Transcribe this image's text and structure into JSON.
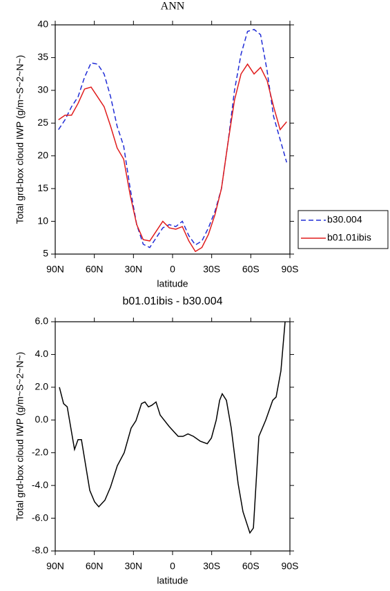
{
  "chart_data": [
    {
      "type": "line",
      "title": "ANN",
      "x_label": "latitude",
      "y_label": "Total grd-box cloud IWP (g/m~S~2~N~)",
      "x": [
        87.5,
        82.5,
        77.5,
        72.5,
        67.5,
        62.5,
        57.5,
        52.5,
        47.5,
        42.5,
        37.5,
        32.5,
        27.5,
        22.5,
        17.5,
        12.5,
        7.5,
        2.5,
        -2.5,
        -7.5,
        -12.5,
        -17.5,
        -22.5,
        -27.5,
        -32.5,
        -37.5,
        -42.5,
        -47.5,
        -52.5,
        -57.5,
        -62.5,
        -67.5,
        -72.5,
        -77.5,
        -82.5,
        -87.5
      ],
      "series": [
        {
          "name": "b30.004",
          "color": "#1f2bd6",
          "line_style": "dashed",
          "values": [
            24,
            25.5,
            27.5,
            29,
            32,
            34.2,
            34,
            32.5,
            29,
            24.5,
            21.5,
            15,
            9.5,
            6.5,
            6,
            7.5,
            9,
            9.5,
            9.2,
            10,
            7.8,
            6.4,
            7,
            9,
            11.5,
            15,
            22,
            30,
            35.5,
            39,
            39.3,
            38.5,
            33,
            26,
            22.5,
            19
          ]
        },
        {
          "name": "b01.01ibis",
          "color": "#e01b1b",
          "line_style": "solid",
          "values": [
            25.5,
            26.2,
            26.2,
            28,
            30.2,
            30.5,
            29,
            27.5,
            24.5,
            21.2,
            19.5,
            14,
            9.5,
            7.2,
            7,
            8.5,
            10,
            9,
            8.8,
            9.2,
            7,
            5.4,
            6,
            8,
            11,
            15,
            22,
            28.5,
            32.5,
            34,
            32.5,
            33.5,
            31.5,
            27.5,
            24,
            25.2
          ]
        }
      ],
      "xlim": [
        90,
        -90
      ],
      "xticks": [
        {
          "value": 90,
          "label": "90N"
        },
        {
          "value": 60,
          "label": "60N"
        },
        {
          "value": 30,
          "label": "30N"
        },
        0,
        {
          "value": -30,
          "label": "30S"
        },
        {
          "value": -60,
          "label": "60S"
        },
        {
          "value": -90,
          "label": "90S"
        }
      ],
      "ylim": [
        5,
        40
      ],
      "yticks": [
        5,
        10,
        15,
        20,
        25,
        30,
        35,
        40
      ],
      "legend": "right"
    },
    {
      "type": "line",
      "title": "b01.01ibis - b30.004",
      "x_label": "latitude",
      "y_label": "Total grd-box cloud IWP (g/m~S~2~N~)",
      "x": [
        86.8,
        83.6,
        80.8,
        75.2,
        72.5,
        69.9,
        63.5,
        59.8,
        56.6,
        51.9,
        47.6,
        42.4,
        37.1,
        31.8,
        28.1,
        23.8,
        21.2,
        18.5,
        15.9,
        12.7,
        9.5,
        2.6,
        -4.3,
        -8.0,
        -11.8,
        -16.0,
        -21.3,
        -26.6,
        -29.8,
        -33.5,
        -36.1,
        -38.1,
        -41.3,
        -45.0,
        -50.3,
        -54.0,
        -59.3,
        -62.0,
        -66.2,
        -71.5,
        -76.8,
        -79.4,
        -83.1,
        -86.3
      ],
      "values": [
        2.0,
        1.0,
        0.8,
        -1.8,
        -1.2,
        -1.2,
        -4.3,
        -5.0,
        -5.3,
        -4.9,
        -4.1,
        -2.8,
        -2.0,
        -0.5,
        -0.05,
        1.0,
        1.1,
        0.8,
        0.9,
        1.1,
        0.3,
        -0.4,
        -1.0,
        -1.0,
        -0.85,
        -1.0,
        -1.3,
        -1.45,
        -1.1,
        0,
        1.2,
        1.6,
        1.2,
        -0.5,
        -3.9,
        -5.6,
        -6.9,
        -6.6,
        -1.0,
        0.0,
        1.2,
        1.4,
        3.0,
        6.0
      ],
      "color": "#000000",
      "xlim": [
        90,
        -90
      ],
      "xticks": [
        {
          "value": 90,
          "label": "90N"
        },
        {
          "value": 60,
          "label": "60N"
        },
        {
          "value": 30,
          "label": "30N"
        },
        0,
        {
          "value": -30,
          "label": "30S"
        },
        {
          "value": -60,
          "label": "60S"
        },
        {
          "value": -90,
          "label": "90S"
        }
      ],
      "ylim": [
        -8,
        6
      ],
      "yticks": [
        {
          "value": -8,
          "label": "-8.0"
        },
        {
          "value": -6,
          "label": "-6.0"
        },
        {
          "value": -4,
          "label": "-4.0"
        },
        {
          "value": -2,
          "label": "-2.0"
        },
        {
          "value": 0,
          "label": "0.0"
        },
        {
          "value": 2,
          "label": "2.0"
        },
        {
          "value": 4,
          "label": "4.0"
        },
        {
          "value": 6,
          "label": "6.0"
        }
      ]
    }
  ]
}
